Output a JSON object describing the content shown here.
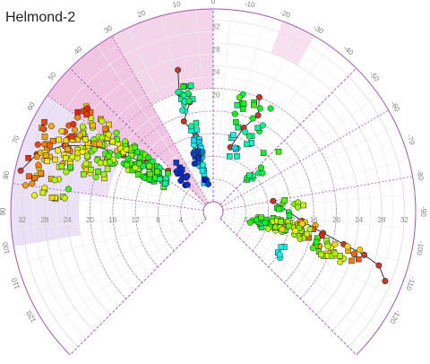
{
  "chart_data": {
    "type": "scatter",
    "subtype": "polar",
    "title": "Helmond-2",
    "angle_ticks": [
      -120,
      -110,
      -100,
      -90,
      -80,
      -70,
      -60,
      -50,
      -40,
      -30,
      -20,
      -10,
      0,
      10,
      20,
      30,
      40,
      50,
      60,
      70,
      80,
      90,
      100,
      110,
      120
    ],
    "radial_ticks": [
      4,
      8,
      12,
      16,
      20,
      24,
      28,
      32
    ],
    "radial_range": [
      0,
      34
    ],
    "angle_range": [
      -135,
      135
    ],
    "grid": true,
    "shaded_sectors": [
      {
        "from": 0,
        "to": 30,
        "rmin": 20,
        "color": "#f3d4ea"
      },
      {
        "from": 30,
        "to": 45,
        "rmin": 0,
        "color": "#f1c4e4"
      },
      {
        "from": 45,
        "to": 55,
        "rmin": 12,
        "color": "#f1c4e4"
      },
      {
        "from": 55,
        "to": 82,
        "rmin": 17,
        "color": "#ece0f7"
      },
      {
        "from": 82,
        "to": 100,
        "rmin": 22,
        "color": "#ece0f7"
      },
      {
        "from": -30,
        "to": -20,
        "rmin": 28,
        "color": "#f7e0ef"
      }
    ],
    "boundary_spokes": [
      -135,
      -45,
      0,
      45,
      135
    ],
    "dashed_spokes": [
      -80,
      -60,
      30,
      55,
      82
    ],
    "guide_radii": [
      4,
      8,
      12,
      16,
      20
    ],
    "seed": 7,
    "clusters": [
      {
        "a": [
          10,
          18
        ],
        "r": [
          3,
          21
        ],
        "n": 50,
        "h": [
          0.05,
          0.5
        ]
      },
      {
        "a": [
          14,
          22
        ],
        "r": [
          4,
          10
        ],
        "n": 8,
        "h": [
          0.0,
          0.1
        ]
      },
      {
        "a": [
          50,
          64
        ],
        "r": [
          8,
          28
        ],
        "n": 150,
        "h": [
          0.3,
          1.0
        ]
      },
      {
        "a": [
          62,
          74
        ],
        "r": [
          18,
          32
        ],
        "n": 60,
        "h": [
          0.55,
          1.0
        ]
      },
      {
        "a": [
          70,
          86
        ],
        "r": [
          24,
          33
        ],
        "n": 35,
        "h": [
          0.55,
          1.0
        ]
      },
      {
        "a": [
          36,
          48
        ],
        "r": [
          4,
          10
        ],
        "n": 12,
        "h": [
          0.0,
          0.1
        ]
      },
      {
        "a": [
          -30,
          -12
        ],
        "r": [
          8,
          20
        ],
        "n": 30,
        "h": [
          0.15,
          0.6
        ]
      },
      {
        "a": [
          -60,
          -40
        ],
        "r": [
          6,
          16
        ],
        "n": 10,
        "h": [
          0.35,
          0.6
        ]
      },
      {
        "a": [
          -108,
          -96
        ],
        "r": [
          5,
          18
        ],
        "n": 70,
        "h": [
          0.35,
          1.0
        ]
      },
      {
        "a": [
          -112,
          -104
        ],
        "r": [
          17,
          26
        ],
        "n": 30,
        "h": [
          0.5,
          1.0
        ]
      },
      {
        "a": [
          -95,
          -78
        ],
        "r": [
          8,
          16
        ],
        "n": 12,
        "h": [
          0.3,
          0.8
        ]
      },
      {
        "a": [
          -125,
          -115
        ],
        "r": [
          10,
          13
        ],
        "n": 5,
        "h": [
          0.2,
          0.3
        ]
      }
    ],
    "trails": [
      [
        [
          15,
          8
        ],
        [
          13,
          12
        ],
        [
          18,
          15
        ],
        [
          12,
          18
        ],
        [
          16,
          20
        ],
        [
          14,
          24
        ]
      ],
      [
        [
          48,
          9
        ],
        [
          54,
          13
        ],
        [
          58,
          17
        ],
        [
          61,
          22
        ],
        [
          66,
          27
        ],
        [
          72,
          31
        ],
        [
          78,
          33
        ]
      ],
      [
        [
          -15,
          10
        ],
        [
          -20,
          14
        ],
        [
          -25,
          17
        ],
        [
          -22,
          20
        ]
      ],
      [
        [
          -80,
          9
        ],
        [
          -96,
          14
        ],
        [
          -101,
          18
        ],
        [
          -104,
          22
        ],
        [
          -106,
          26
        ],
        [
          -108,
          29
        ],
        [
          -112,
          31
        ]
      ]
    ]
  }
}
